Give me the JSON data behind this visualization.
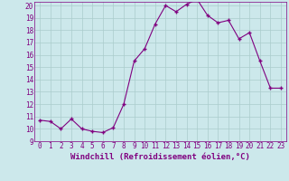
{
  "x": [
    0,
    1,
    2,
    3,
    4,
    5,
    6,
    7,
    8,
    9,
    10,
    11,
    12,
    13,
    14,
    15,
    16,
    17,
    18,
    19,
    20,
    21,
    22,
    23
  ],
  "y": [
    10.7,
    10.6,
    10.0,
    10.8,
    10.0,
    9.8,
    9.7,
    10.1,
    12.0,
    15.5,
    16.5,
    18.5,
    20.0,
    19.5,
    20.1,
    20.5,
    19.2,
    18.6,
    18.8,
    17.3,
    17.8,
    15.5,
    13.3,
    13.3
  ],
  "line_color": "#800080",
  "marker": "+",
  "marker_size": 3,
  "xlabel": "Windchill (Refroidissement éolien,°C)",
  "ylabel": "",
  "ylim": [
    9,
    20
  ],
  "xlim": [
    -0.5,
    23.5
  ],
  "yticks": [
    9,
    10,
    11,
    12,
    13,
    14,
    15,
    16,
    17,
    18,
    19,
    20
  ],
  "xticks": [
    0,
    1,
    2,
    3,
    4,
    5,
    6,
    7,
    8,
    9,
    10,
    11,
    12,
    13,
    14,
    15,
    16,
    17,
    18,
    19,
    20,
    21,
    22,
    23
  ],
  "bg_color": "#cce8eb",
  "grid_color": "#aacccc",
  "xlabel_fontsize": 6.5,
  "tick_fontsize": 5.5,
  "line_width": 0.8
}
